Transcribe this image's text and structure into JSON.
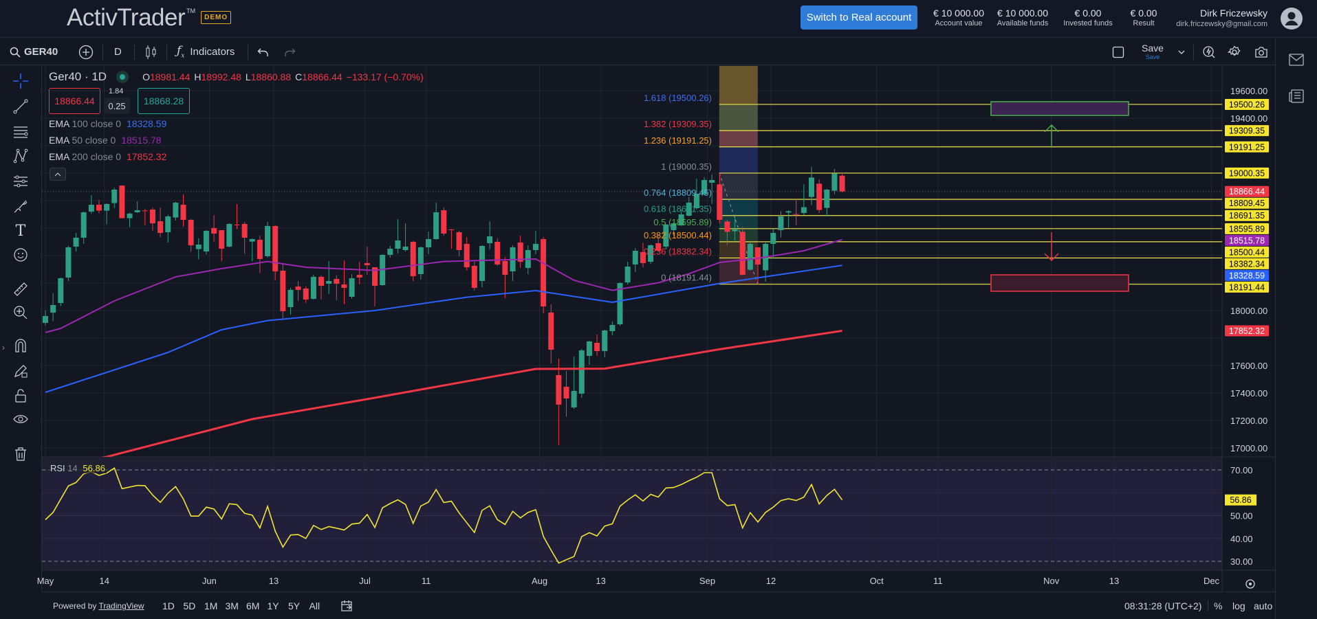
{
  "header": {
    "logo": "ActivTrader",
    "trademark": "TM",
    "badge": "DEMO",
    "switch_button": "Switch to Real account",
    "stats": [
      {
        "value": "€ 10 000.00",
        "label": "Account value"
      },
      {
        "value": "€ 10 000.00",
        "label": "Available funds"
      },
      {
        "value": "€ 0.00",
        "label": "Invested funds"
      },
      {
        "value": "€ 0.00",
        "label": "Result"
      }
    ],
    "user_name": "Dirk Friczewsky",
    "user_email": "dirk.friczewsky@gmail.com"
  },
  "toolbar": {
    "symbol": "GER40",
    "interval": "D",
    "indicators": "Indicators",
    "save": "Save",
    "save_sub": "Save"
  },
  "legend": {
    "title": "Ger40 · 1D",
    "ohlc": [
      {
        "k": "O",
        "v": "18981.44"
      },
      {
        "k": "H",
        "v": "18992.48"
      },
      {
        "k": "L",
        "v": "18860.88"
      },
      {
        "k": "C",
        "v": "18866.44"
      }
    ],
    "change": "−133.17 (−0.70%)",
    "sell": "18866.44",
    "buy": "18868.28",
    "spread_top": "1.84",
    "spread": "0.25",
    "emas": [
      {
        "name": "EMA",
        "params": "100 close 0",
        "value": "18328.59",
        "color": "#3d6ff0"
      },
      {
        "name": "EMA",
        "params": "50 close 0",
        "value": "18515.78",
        "color": "#9c27b0"
      },
      {
        "name": "EMA",
        "params": "200 close 0",
        "value": "17852.32",
        "color": "#f23645"
      }
    ],
    "rsi": {
      "name": "RSI",
      "params": "14",
      "value": "56.86"
    }
  },
  "colors": {
    "up": "#2e9e84",
    "down": "#f23645",
    "ema50": "#9c27b0",
    "ema100": "#2962ff",
    "ema200": "#f23645",
    "rsi": "#f5e52f",
    "fib_line": "#f0e24a",
    "accent": "#2f7bd8"
  },
  "chart_data": {
    "type": "candlestick",
    "symbol": "Ger40",
    "interval": "1D",
    "ylim": [
      16950,
      19700
    ],
    "price_ticks": [
      17000,
      17200,
      17400,
      17600,
      17800,
      18000,
      18200,
      18400,
      18600,
      18800,
      19000,
      19200,
      19400,
      19600
    ],
    "x_tick_labels": [
      "May",
      "14",
      "Jun",
      "13",
      "Jul",
      "11",
      "Aug",
      "13",
      "Sep",
      "12",
      "Oct",
      "11",
      "Nov",
      "13",
      "Dec"
    ],
    "candles_ohlc": [
      [
        17910,
        18000,
        17890,
        17960
      ],
      [
        17985,
        18127,
        17922,
        18040
      ],
      [
        18055,
        18240,
        18032,
        18235
      ],
      [
        18240,
        18470,
        18215,
        18460
      ],
      [
        18465,
        18565,
        18430,
        18530
      ],
      [
        18530,
        18720,
        18485,
        18715
      ],
      [
        18720,
        18840,
        18705,
        18770
      ],
      [
        18770,
        18805,
        18707,
        18727
      ],
      [
        18727,
        18780,
        18627,
        18775
      ],
      [
        18782,
        18893,
        18747,
        18880
      ],
      [
        18910,
        18910,
        18672,
        18672
      ],
      [
        18672,
        18713,
        18607,
        18705
      ],
      [
        18715,
        18795,
        18710,
        18730
      ],
      [
        18728,
        18740,
        18622,
        18725
      ],
      [
        18735,
        18748,
        18580,
        18635
      ],
      [
        18650,
        18750,
        18535,
        18565
      ],
      [
        18570,
        18697,
        18495,
        18685
      ],
      [
        18677,
        18792,
        18655,
        18785
      ],
      [
        18770,
        18845,
        18612,
        18660
      ],
      [
        18660,
        18665,
        18427,
        18475
      ],
      [
        18447,
        18525,
        18372,
        18480
      ],
      [
        18430,
        18585,
        18407,
        18580
      ],
      [
        18600,
        18695,
        18500,
        18560
      ],
      [
        18585,
        18585,
        18357,
        18450
      ],
      [
        18465,
        18635,
        18460,
        18630
      ],
      [
        18625,
        18775,
        18592,
        18622
      ],
      [
        18630,
        18645,
        18412,
        18530
      ],
      [
        18502,
        18525,
        18357,
        18520
      ],
      [
        18515,
        18545,
        18272,
        18375
      ],
      [
        18395,
        18645,
        18385,
        18615
      ],
      [
        18615,
        18620,
        18222,
        18285
      ],
      [
        18290,
        18335,
        17945,
        17995
      ],
      [
        18025,
        18165,
        17970,
        18150
      ],
      [
        18175,
        18215,
        18070,
        18150
      ],
      [
        18160,
        18175,
        18055,
        18080
      ],
      [
        18085,
        18260,
        18080,
        18245
      ],
      [
        18245,
        18255,
        18080,
        18180
      ],
      [
        18195,
        18360,
        18120,
        18215
      ],
      [
        18230,
        18255,
        18075,
        18195
      ],
      [
        18190,
        18365,
        18045,
        18165
      ],
      [
        18100,
        18265,
        18085,
        18235
      ],
      [
        18260,
        18355,
        18190,
        18240
      ],
      [
        18345,
        18465,
        18260,
        18330
      ],
      [
        18315,
        18315,
        18030,
        18180
      ],
      [
        18185,
        18410,
        18180,
        18405
      ],
      [
        18405,
        18470,
        18385,
        18450
      ],
      [
        18450,
        18665,
        18415,
        18510
      ],
      [
        18440,
        18635,
        18430,
        18465
      ],
      [
        18500,
        18505,
        18215,
        18250
      ],
      [
        18265,
        18465,
        18225,
        18460
      ],
      [
        18460,
        18575,
        18410,
        18520
      ],
      [
        18520,
        18785,
        18515,
        18715
      ],
      [
        18730,
        18750,
        18545,
        18560
      ],
      [
        18590,
        18593,
        18450,
        18587
      ],
      [
        18570,
        18580,
        18395,
        18440
      ],
      [
        18485,
        18535,
        18290,
        18315
      ],
      [
        18325,
        18355,
        18145,
        18165
      ],
      [
        18215,
        18475,
        18170,
        18470
      ],
      [
        18490,
        18650,
        18445,
        18540
      ],
      [
        18500,
        18525,
        18325,
        18335
      ],
      [
        18360,
        18390,
        18090,
        18260
      ],
      [
        18285,
        18475,
        18215,
        18460
      ],
      [
        18495,
        18545,
        18310,
        18355
      ],
      [
        18310,
        18475,
        18265,
        18440
      ],
      [
        18440,
        18580,
        18410,
        18485
      ],
      [
        18520,
        18535,
        17980,
        18030
      ],
      [
        17985,
        18045,
        17615,
        17715
      ],
      [
        17530,
        17650,
        17021,
        17315
      ],
      [
        17445,
        17560,
        17227,
        17360
      ],
      [
        17295,
        17665,
        17285,
        17415
      ],
      [
        17395,
        17720,
        17365,
        17710
      ],
      [
        17670,
        17780,
        17605,
        17775
      ],
      [
        17765,
        17825,
        17670,
        17705
      ],
      [
        17705,
        17860,
        17660,
        17855
      ],
      [
        17850,
        17920,
        17820,
        17895
      ],
      [
        17900,
        18205,
        17890,
        18200
      ],
      [
        18205,
        18355,
        18190,
        18320
      ],
      [
        18335,
        18455,
        18280,
        18435
      ],
      [
        18425,
        18495,
        18315,
        18345
      ],
      [
        18355,
        18480,
        18340,
        18475
      ],
      [
        18490,
        18550,
        18430,
        18435
      ],
      [
        18465,
        18630,
        18445,
        18625
      ],
      [
        18585,
        18640,
        18545,
        18635
      ],
      [
        18620,
        18735,
        18615,
        18700
      ],
      [
        18690,
        18825,
        18685,
        18785
      ],
      [
        18745,
        18960,
        18735,
        18850
      ],
      [
        18845,
        18970,
        18840,
        18950
      ],
      [
        18930,
        18990,
        18777,
        18950
      ],
      [
        18918,
        19000.35,
        18635,
        18660
      ],
      [
        18648,
        18660,
        18477,
        18573
      ],
      [
        18577,
        18685,
        18510,
        18590
      ],
      [
        18573,
        18610,
        18257,
        18260
      ],
      [
        18297,
        18495,
        18290,
        18485
      ],
      [
        18460,
        18460,
        18191.44,
        18335
      ],
      [
        18293,
        18495,
        18210,
        18485
      ],
      [
        18485,
        18593,
        18377,
        18565
      ],
      [
        18585,
        18723,
        18532,
        18685
      ],
      [
        18713,
        18730,
        18602,
        18723
      ],
      [
        18702,
        18810,
        18622,
        18698
      ],
      [
        18710,
        18918,
        18693,
        18752
      ],
      [
        18827,
        19047,
        18768,
        18968
      ],
      [
        18923,
        18955,
        18710,
        18732
      ],
      [
        18747,
        18885,
        18685,
        18880
      ],
      [
        18872,
        19030,
        18847,
        18997
      ],
      [
        18981.44,
        18992.48,
        18860.88,
        18866.44
      ]
    ],
    "ema50": [
      {
        "bar": 0,
        "value": 17840
      },
      {
        "bar": 2,
        "value": 17870
      },
      {
        "bar": 9,
        "value": 18070
      },
      {
        "bar": 17,
        "value": 18245
      },
      {
        "bar": 23,
        "value": 18305
      },
      {
        "bar": 29,
        "value": 18357
      },
      {
        "bar": 34,
        "value": 18315
      },
      {
        "bar": 43,
        "value": 18292
      },
      {
        "bar": 52,
        "value": 18357
      },
      {
        "bar": 64,
        "value": 18375
      },
      {
        "bar": 69,
        "value": 18220
      },
      {
        "bar": 74,
        "value": 18147
      },
      {
        "bar": 80,
        "value": 18202
      },
      {
        "bar": 84,
        "value": 18268
      },
      {
        "bar": 88,
        "value": 18350
      },
      {
        "bar": 93,
        "value": 18380
      },
      {
        "bar": 99,
        "value": 18435
      },
      {
        "bar": 104,
        "value": 18515.78
      }
    ],
    "ema100": [
      {
        "bar": 0,
        "value": 17405
      },
      {
        "bar": 16,
        "value": 17695
      },
      {
        "bar": 23,
        "value": 17860
      },
      {
        "bar": 29,
        "value": 17927
      },
      {
        "bar": 43,
        "value": 18000
      },
      {
        "bar": 55,
        "value": 18097
      },
      {
        "bar": 64,
        "value": 18145
      },
      {
        "bar": 74,
        "value": 18060
      },
      {
        "bar": 88,
        "value": 18197
      },
      {
        "bar": 104,
        "value": 18328.59
      }
    ],
    "ema200": [
      {
        "bar": 0,
        "value": 16850
      },
      {
        "bar": 8,
        "value": 16935
      },
      {
        "bar": 27,
        "value": 17210
      },
      {
        "bar": 43,
        "value": 17365
      },
      {
        "bar": 64,
        "value": 17575
      },
      {
        "bar": 73,
        "value": 17577
      },
      {
        "bar": 88,
        "value": 17718
      },
      {
        "bar": 104,
        "value": 17852.32
      }
    ],
    "last_price": 18866.44,
    "fib": {
      "start_bar": 88,
      "levels": [
        {
          "ratio": "1.618",
          "price": 19500.26,
          "label": "1.618 (19500.26)",
          "color": "#3d6ff0",
          "band": "#66552d"
        },
        {
          "ratio": "1.382",
          "price": 19309.35,
          "label": "1.382 (19309.35)",
          "color": "#f23645",
          "band": "#4b5540"
        },
        {
          "ratio": "1.236",
          "price": 19191.25,
          "label": "1.236 (19191.25)",
          "color": "#f7a21b",
          "band": "#6b3f45"
        },
        {
          "ratio": "1",
          "price": 19000.35,
          "label": "1 (19000.35)",
          "color": "#8a8d96",
          "band": "#1d2a58"
        },
        {
          "ratio": "0.764",
          "price": 18809.45,
          "label": "0.764 (18809.45)",
          "color": "#4fb0d6",
          "band": "#2a2e3d"
        },
        {
          "ratio": "0.618",
          "price": 18691.35,
          "label": "0.618 (18691.35)",
          "color": "#2a9d8f",
          "band": "#0f3a48"
        },
        {
          "ratio": "0.5",
          "price": 18595.89,
          "label": "0.5 (18595.89)",
          "color": "#4caf50",
          "band": "#123c40"
        },
        {
          "ratio": "0.382",
          "price": 18500.44,
          "label": "0.382 (18500.44)",
          "color": "#ff9800",
          "band": "#1f3b2e"
        },
        {
          "ratio": "0.236",
          "price": 18382.34,
          "label": "0.236 (18382.34)",
          "color": "#f23645",
          "band": "#3b3124"
        },
        {
          "ratio": "0",
          "price": 18191.44,
          "label": "0 (18191.44)",
          "color": "#8a8d96",
          "band": "#3a2530"
        }
      ]
    },
    "targets": [
      {
        "kind": "up",
        "price_top": 19520,
        "price_bottom": 19420,
        "color": "#4caf50"
      },
      {
        "kind": "down",
        "price_top": 18260,
        "price_bottom": 18140,
        "color": "#f23645"
      }
    ],
    "axis_labels": [
      {
        "price": 19500.26,
        "text": "19500.26",
        "bg": "#f5e52f",
        "fg": "#000"
      },
      {
        "price": 19309.35,
        "text": "19309.35",
        "bg": "#f5e52f",
        "fg": "#000"
      },
      {
        "price": 19191.25,
        "text": "19191.25",
        "bg": "#f5e52f",
        "fg": "#000"
      },
      {
        "price": 19000.35,
        "text": "19000.35",
        "bg": "#f5e52f",
        "fg": "#000"
      },
      {
        "price": 18866.44,
        "text": "18866.44",
        "bg": "#f23645",
        "fg": "#fff"
      },
      {
        "price": 18809.45,
        "text": "18809.45",
        "bg": "#f5e52f",
        "fg": "#000"
      },
      {
        "price": 18691.35,
        "text": "18691.35",
        "bg": "#f5e52f",
        "fg": "#000"
      },
      {
        "price": 18595.89,
        "text": "18595.89",
        "bg": "#f5e52f",
        "fg": "#000"
      },
      {
        "price": 18515.78,
        "text": "18515.78",
        "bg": "#9c27b0",
        "fg": "#fff"
      },
      {
        "price": 18500.44,
        "text": "18500.44",
        "bg": "#f5e52f",
        "fg": "#000"
      },
      {
        "price": 18382.34,
        "text": "18382.34",
        "bg": "#f5e52f",
        "fg": "#000"
      },
      {
        "price": 18328.59,
        "text": "18328.59",
        "bg": "#2962ff",
        "fg": "#fff"
      },
      {
        "price": 18191.44,
        "text": "18191.44",
        "bg": "#f5e52f",
        "fg": "#000"
      },
      {
        "price": 17852.32,
        "text": "17852.32",
        "bg": "#f23645",
        "fg": "#fff"
      }
    ],
    "rsi": {
      "period": 14,
      "upper": 70,
      "lower": 30,
      "ticks": [
        70,
        60,
        50,
        40,
        30
      ],
      "last": 56.86,
      "values": [
        48.2,
        51.4,
        57.2,
        63.0,
        64.5,
        68.3,
        69.2,
        67.6,
        68.6,
        70.8,
        61.8,
        62.5,
        63.2,
        63.1,
        59.0,
        55.8,
        59.8,
        62.7,
        57.3,
        49.8,
        49.8,
        53.7,
        52.9,
        48.5,
        55.2,
        54.8,
        51.0,
        50.2,
        44.6,
        54.1,
        43.2,
        36.2,
        41.5,
        41.7,
        40.0,
        45.7,
        43.9,
        45.2,
        44.5,
        43.7,
        46.3,
        46.7,
        50.5,
        44.8,
        53.4,
        55.3,
        56.9,
        54.9,
        46.6,
        54.2,
        55.9,
        61.4,
        55.7,
        56.3,
        51.2,
        46.9,
        42.6,
        52.3,
        54.3,
        48.2,
        46.1,
        51.9,
        49.0,
        51.4,
        52.6,
        40.9,
        34.9,
        29.2,
        30.7,
        32.1,
        40.8,
        42.5,
        41.1,
        45.4,
        46.4,
        54.1,
        56.8,
        59.1,
        56.4,
        59.3,
        58.1,
        62.1,
        62.3,
        63.6,
        65.3,
        66.8,
        68.8,
        68.8,
        57.3,
        54.4,
        54.8,
        44.6,
        51.3,
        47.2,
        51.4,
        53.7,
        56.6,
        57.4,
        56.6,
        58.1,
        63.6,
        55.1,
        58.8,
        61.5,
        56.86
      ]
    }
  },
  "bottom": {
    "powered_prefix": "Powered by ",
    "powered_link": "TradingView",
    "ranges": [
      "1D",
      "5D",
      "1M",
      "3M",
      "6M",
      "1Y",
      "5Y",
      "All"
    ],
    "time": "08:31:28 (UTC+2)",
    "percent": "%",
    "log": "log",
    "auto": "auto"
  }
}
